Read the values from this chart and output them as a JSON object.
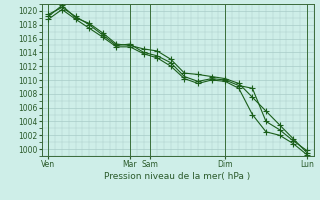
{
  "title": "Pression niveau de la mer( hPa )",
  "bg_color": "#ceeee8",
  "grid_color": "#a8ccc8",
  "line_color": "#1a5e1a",
  "marker_color": "#1a5e1a",
  "ylim": [
    999.0,
    1021.0
  ],
  "ytick_min": 1000,
  "ytick_max": 1020,
  "ytick_step": 2,
  "xlim": [
    0,
    20
  ],
  "xtick_positions": [
    0.5,
    6.5,
    8.0,
    13.5,
    19.5
  ],
  "xtick_labels": [
    "Ven",
    "Mar",
    "Sam",
    "Dim",
    "Lun"
  ],
  "vline_positions": [
    0.5,
    6.5,
    8.0,
    13.5,
    19.5
  ],
  "series1_x": [
    0.5,
    1.5,
    2.5,
    3.5,
    4.5,
    5.5,
    6.5,
    7.5,
    8.5,
    9.5,
    10.5,
    11.5,
    12.5,
    13.5,
    14.5,
    15.5,
    16.5,
    17.5,
    18.5,
    19.5
  ],
  "series1_y": [
    1019.2,
    1020.8,
    1019.0,
    1018.2,
    1016.8,
    1015.2,
    1015.0,
    1014.5,
    1014.2,
    1013.0,
    1011.0,
    1010.8,
    1010.5,
    1010.2,
    1009.5,
    1007.5,
    1005.5,
    1003.5,
    1001.5,
    999.5
  ],
  "series2_x": [
    0.5,
    1.5,
    2.5,
    3.5,
    4.5,
    5.5,
    6.5,
    7.5,
    8.5,
    9.5,
    10.5,
    11.5,
    12.5,
    13.5,
    14.5,
    15.5,
    16.5,
    17.5,
    18.5,
    19.5
  ],
  "series2_y": [
    1019.5,
    1020.5,
    1019.2,
    1018.0,
    1016.5,
    1015.0,
    1015.2,
    1014.0,
    1013.5,
    1012.5,
    1010.5,
    1009.8,
    1010.2,
    1010.0,
    1009.2,
    1008.8,
    1004.0,
    1002.8,
    1001.2,
    999.8
  ],
  "series3_x": [
    0.5,
    1.5,
    2.5,
    3.5,
    4.5,
    5.5,
    6.5,
    7.5,
    8.5,
    9.5,
    10.5,
    11.5,
    12.5,
    13.5,
    14.5,
    15.5,
    16.5,
    17.5,
    18.5,
    19.5
  ],
  "series3_y": [
    1018.8,
    1020.2,
    1018.8,
    1017.5,
    1016.2,
    1014.8,
    1014.8,
    1013.8,
    1013.2,
    1012.0,
    1010.2,
    1009.5,
    1010.0,
    1009.8,
    1008.8,
    1005.0,
    1002.5,
    1002.0,
    1000.8,
    999.2
  ],
  "marker_size": 4,
  "linewidth": 0.8
}
